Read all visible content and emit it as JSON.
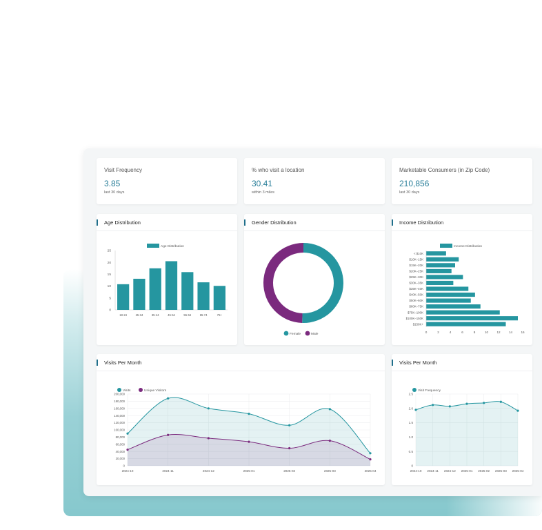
{
  "colors": {
    "teal": "#2596a0",
    "purple": "#7b2a7e",
    "accent": "#1f6f8b"
  },
  "stats": [
    {
      "label": "Visit Frequency",
      "value": "3.85",
      "sub": "last 30 days"
    },
    {
      "label": "% who visit a location",
      "value": "30.41",
      "sub": "within 3 miles"
    },
    {
      "label": "Marketable Consumers (in Zip Code)",
      "value": "210,856",
      "sub": "last 30 days"
    }
  ],
  "cards": {
    "age": "Age Distribution",
    "gender": "Gender Distribution",
    "income": "Income Distribution",
    "visits": "Visits Per Month",
    "frequency": "Visits Per Month"
  },
  "chart_data": [
    {
      "type": "bar",
      "legend": [
        "Age Distribution"
      ],
      "categories": [
        "18-24",
        "25-34",
        "35-44",
        "45-54",
        "55-64",
        "65-74",
        "75+"
      ],
      "values": [
        10.8,
        13.1,
        17.5,
        20.5,
        15.9,
        11.6,
        10.1
      ],
      "ylim": [
        0,
        25
      ],
      "yticks": [
        "0",
        "5",
        "10",
        "15",
        "20",
        "25"
      ],
      "grid": false
    },
    {
      "type": "pie",
      "legend": [
        "Female",
        "Male"
      ],
      "values": [
        50.5,
        49.5
      ],
      "donut": true
    },
    {
      "type": "bar",
      "orientation": "horizontal",
      "legend": [
        "Income Distribution"
      ],
      "categories": [
        "< $10K",
        "$10K–15K",
        "$15K–20K",
        "$20K–25K",
        "$25K–30K",
        "$30K–35K",
        "$35K–40K",
        "$40K–50K",
        "$50K–60K",
        "$60K–75K",
        "$75K–100K",
        "$100K–150K",
        "$150K+"
      ],
      "values": [
        3.3,
        5.4,
        4.8,
        4.2,
        6.1,
        4.5,
        7.0,
        8.1,
        7.4,
        9.0,
        12.2,
        15.2,
        13.2
      ],
      "xlim": [
        0,
        16
      ],
      "xticks": [
        "0",
        "2",
        "4",
        "6",
        "8",
        "10",
        "12",
        "14",
        "16"
      ]
    },
    {
      "type": "area",
      "x": [
        "2024-10",
        "2024-11",
        "2024-12",
        "2025-01",
        "2025-02",
        "2025-03",
        "2025-04"
      ],
      "series": [
        {
          "name": "Visits",
          "values": [
            90000,
            188000,
            160000,
            145000,
            113000,
            158000,
            35000
          ]
        },
        {
          "name": "Unique Visitors",
          "values": [
            45000,
            86000,
            77000,
            67000,
            49000,
            70000,
            18000
          ]
        }
      ],
      "ylim": [
        0,
        200000
      ],
      "yticks": [
        "0",
        "20,000",
        "40,000",
        "60,000",
        "80,000",
        "100,000",
        "120,000",
        "140,000",
        "160,000",
        "180,000",
        "200,000"
      ]
    },
    {
      "type": "area",
      "x": [
        "2024-10",
        "2024-11",
        "2024-12",
        "2025-01",
        "2025-02",
        "2025-03",
        "2025-04"
      ],
      "series": [
        {
          "name": "Visit Frequency",
          "values": [
            1.95,
            2.12,
            2.07,
            2.16,
            2.19,
            2.23,
            1.92
          ]
        }
      ],
      "ylim": [
        0,
        2.5
      ],
      "yticks": [
        "0",
        "0.5",
        "1.0",
        "1.5",
        "2.0",
        "2.5"
      ]
    }
  ]
}
